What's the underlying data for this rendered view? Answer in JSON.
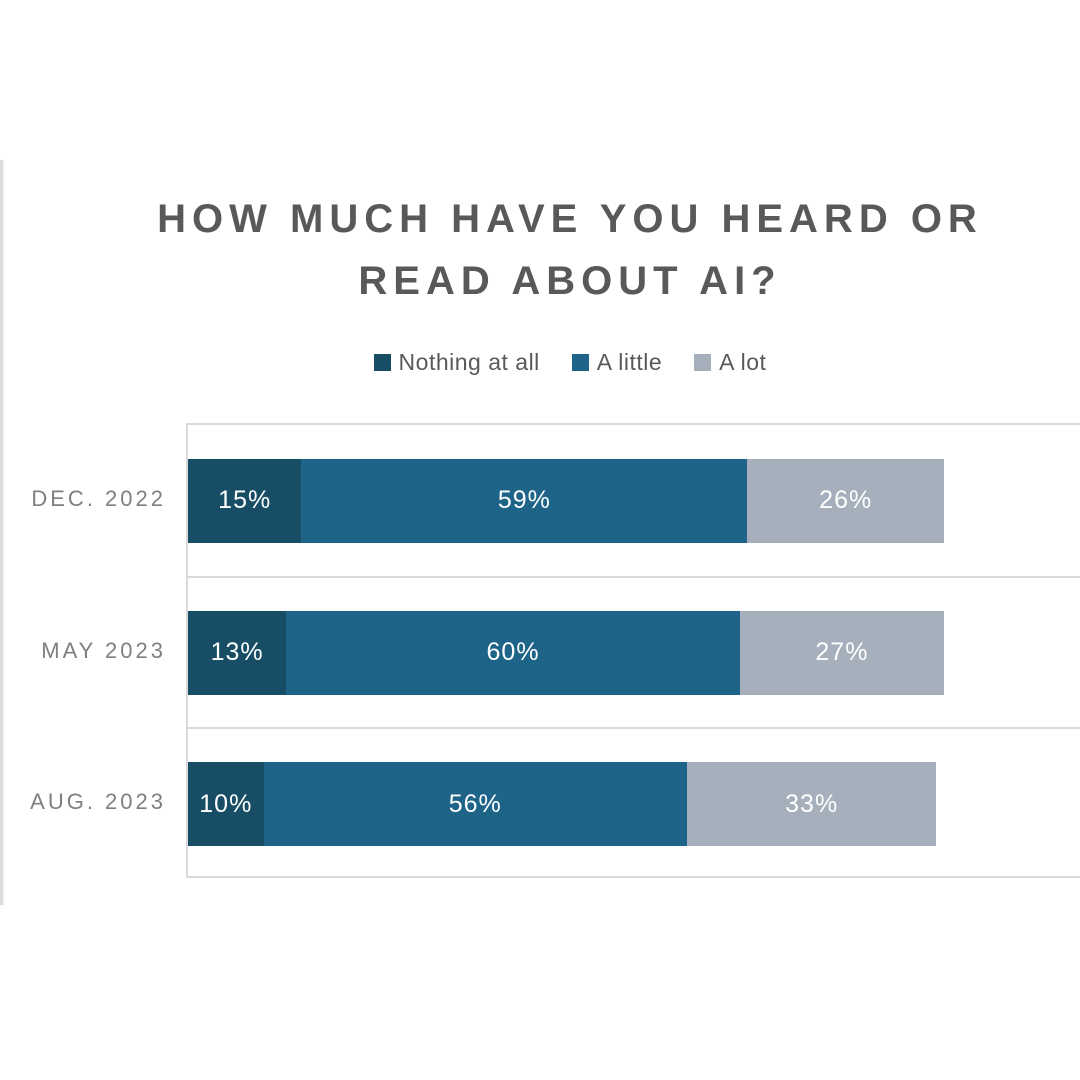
{
  "page": {
    "background_color": "#ffffff",
    "border_color": "#d9d9d9",
    "title_color": "#595959",
    "category_label_color": "#7f7f7f",
    "data_label_color": "#ffffff"
  },
  "chart_data": {
    "type": "bar",
    "orientation": "horizontal",
    "stacked": true,
    "title": "HOW MUCH HAVE YOU HEARD OR READ ABOUT AI?",
    "title_lines": [
      "HOW MUCH HAVE YOU HEARD OR",
      "READ ABOUT AI?"
    ],
    "legend_position": "top",
    "categories": [
      "DEC. 2022",
      "MAY 2023",
      "AUG. 2023"
    ],
    "series": [
      {
        "name": "Nothing at all",
        "color": "#174e66",
        "values": [
          15,
          13,
          10
        ]
      },
      {
        "name": "A little",
        "color": "#1d6488",
        "values": [
          59,
          60,
          56
        ]
      },
      {
        "name": "A lot",
        "color": "#a6b0bc",
        "values": [
          26,
          27,
          33
        ]
      }
    ],
    "value_suffix": "%",
    "xlabel": "",
    "ylabel": "",
    "xlim": [
      0,
      100
    ],
    "grid": "category-band-separators",
    "data_labels_visible": true
  }
}
